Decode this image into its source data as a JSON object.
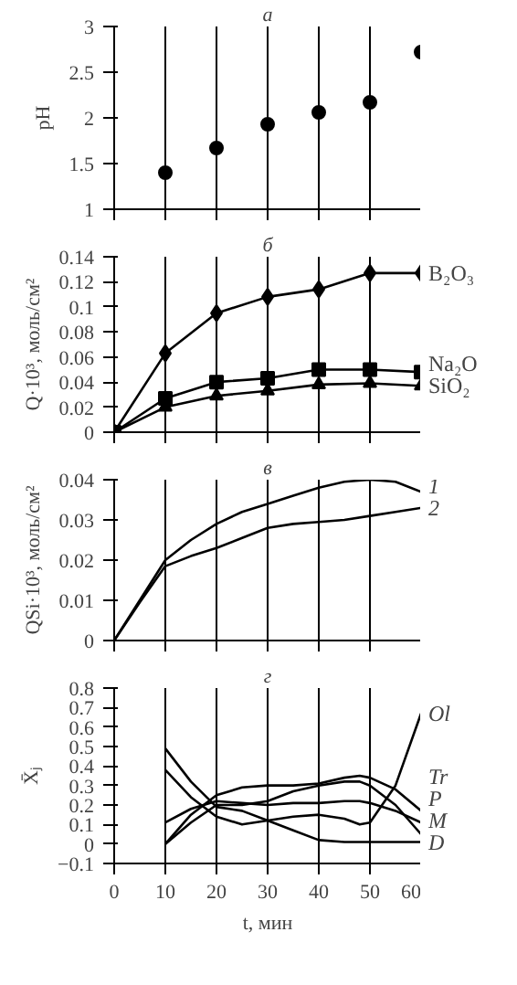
{
  "chart_data": [
    {
      "type": "scatter",
      "title": "а",
      "ylabel": "pH",
      "x": [
        10,
        20,
        30,
        40,
        50,
        60
      ],
      "marker": "circle",
      "grid": "x",
      "tick_labels": "y",
      "xlim": [
        0,
        60
      ],
      "xticks": [
        0,
        10,
        20,
        30,
        40,
        50,
        60
      ],
      "ylim": [
        1,
        3
      ],
      "yticks": [
        1,
        {
          "value": 1.5,
          "label": "1.5"
        },
        2,
        {
          "value": 2.5,
          "label": "2.5"
        },
        3
      ],
      "series": [
        {
          "color": "#000000",
          "values": [
            1.4,
            1.67,
            1.93,
            2.06,
            2.17,
            2.72
          ]
        }
      ]
    },
    {
      "type": "line",
      "title": "б",
      "ylabel": "Q·10³, моль/см²",
      "x": [
        0,
        10,
        20,
        30,
        40,
        50,
        60
      ],
      "grid": "x",
      "tick_labels": "y",
      "xlim": [
        0,
        60
      ],
      "xticks": [
        0,
        10,
        20,
        30,
        40,
        50,
        60
      ],
      "ylim": [
        0,
        0.14
      ],
      "yticks": [
        0,
        0.02,
        0.04,
        0.06,
        0.08,
        0.1,
        0.12,
        0.14
      ],
      "series": [
        {
          "name": "B₂O₃",
          "color": "#000000",
          "marker": "diamond",
          "values": [
            0,
            0.063,
            0.095,
            0.108,
            0.114,
            0.127,
            0.127
          ]
        },
        {
          "name": "Na₂O",
          "color": "#000000",
          "marker": "square",
          "values": [
            0,
            0.027,
            0.04,
            0.043,
            0.05,
            0.05,
            0.048
          ]
        },
        {
          "name": "SiO₂",
          "color": "#000000",
          "marker": "triangle",
          "values": [
            0,
            0.02,
            0.029,
            0.033,
            0.038,
            0.039,
            0.037
          ]
        }
      ]
    },
    {
      "type": "line",
      "title": "в",
      "ylabel": "QSi·10³, моль/см²",
      "x": [
        0,
        5,
        10,
        15,
        20,
        25,
        30,
        35,
        40,
        45,
        50,
        55,
        60
      ],
      "grid": "x",
      "tick_labels": "y",
      "xlim": [
        0,
        60
      ],
      "xticks": [
        0,
        10,
        20,
        30,
        40,
        50,
        60
      ],
      "ylim": [
        0,
        0.04
      ],
      "yticks": [
        0,
        0.01,
        0.02,
        0.03,
        0.04
      ],
      "series": [
        {
          "name": "1",
          "color": "#000000",
          "values": [
            0,
            0.01,
            0.02,
            0.025,
            0.029,
            0.032,
            0.034,
            0.036,
            0.038,
            0.0395,
            0.04,
            0.0395,
            0.037
          ]
        },
        {
          "name": "2",
          "color": "#000000",
          "values": [
            0,
            0.0095,
            0.0185,
            0.021,
            0.023,
            0.0255,
            0.028,
            0.029,
            0.0295,
            0.03,
            0.031,
            0.032,
            0.033
          ]
        }
      ]
    },
    {
      "type": "line",
      "title": "г",
      "ylabel": "X̄ⱼ",
      "xlabel": "t, мин",
      "x": [
        10,
        15,
        20,
        25,
        30,
        35,
        40,
        45,
        48,
        50,
        55,
        60
      ],
      "grid": "x",
      "xlim": [
        0,
        60
      ],
      "xticks": [
        0,
        10,
        20,
        30,
        40,
        50,
        60
      ],
      "ylim": [
        -0.1,
        0.8
      ],
      "yticks": [
        {
          "value": -0.1,
          "label": "−0.1"
        },
        0,
        0.1,
        0.2,
        0.3,
        0.4,
        0.5,
        0.6,
        0.7,
        0.8
      ],
      "series": [
        {
          "name": "Ol",
          "color": "#000000",
          "values": [
            0.38,
            0.24,
            0.14,
            0.1,
            0.12,
            0.14,
            0.15,
            0.13,
            0.1,
            0.11,
            0.3,
            0.67
          ]
        },
        {
          "name": "Tr",
          "color": "#000000",
          "values": [
            0.0,
            0.15,
            0.25,
            0.29,
            0.3,
            0.3,
            0.31,
            0.34,
            0.35,
            0.34,
            0.28,
            0.17
          ]
        },
        {
          "name": "P",
          "color": "#000000",
          "values": [
            0.11,
            0.18,
            0.22,
            0.21,
            0.2,
            0.21,
            0.21,
            0.22,
            0.22,
            0.21,
            0.17,
            0.11
          ]
        },
        {
          "name": "M",
          "color": "#000000",
          "values": [
            0.0,
            0.11,
            0.2,
            0.2,
            0.22,
            0.27,
            0.3,
            0.32,
            0.32,
            0.3,
            0.2,
            0.05
          ]
        },
        {
          "name": "D",
          "color": "#000000",
          "values": [
            0.49,
            0.32,
            0.19,
            0.17,
            0.12,
            0.07,
            0.02,
            0.01,
            0.01,
            0.01,
            0.01,
            0.01
          ]
        }
      ]
    }
  ]
}
